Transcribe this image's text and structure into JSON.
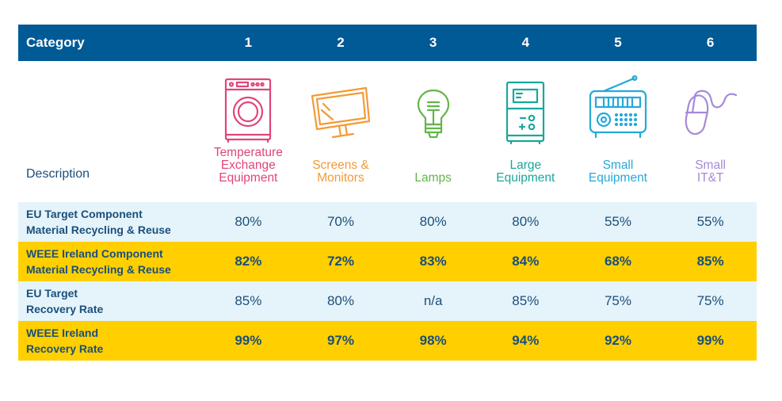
{
  "header": {
    "category_label": "Category",
    "numbers": [
      "1",
      "2",
      "3",
      "4",
      "5",
      "6"
    ]
  },
  "description_label": "Description",
  "categories": [
    {
      "lines": [
        "Temperature",
        "Exchange",
        "Equipment"
      ],
      "color": "#e0457b",
      "icon": "washing-machine-icon"
    },
    {
      "lines": [
        "Screens &",
        "Monitors"
      ],
      "color": "#f39a36",
      "icon": "monitor-icon"
    },
    {
      "lines": [
        "Lamps"
      ],
      "color": "#63b54a",
      "icon": "lightbulb-icon"
    },
    {
      "lines": [
        "Large",
        "Equipment"
      ],
      "color": "#1aa79c",
      "icon": "large-equipment-icon"
    },
    {
      "lines": [
        "Small",
        "Equipment"
      ],
      "color": "#25a9d9",
      "icon": "radio-icon"
    },
    {
      "lines": [
        "Small",
        "IT&T"
      ],
      "color": "#a58ad6",
      "icon": "computer-mouse-icon"
    }
  ],
  "rows": [
    {
      "label": [
        "EU Target Component",
        "Material Recycling & Reuse"
      ],
      "values": [
        "80%",
        "70%",
        "80%",
        "80%",
        "55%",
        "55%"
      ],
      "style": "light"
    },
    {
      "label": [
        "WEEE Ireland Component",
        "Material Recycling & Reuse"
      ],
      "values": [
        "82%",
        "72%",
        "83%",
        "84%",
        "68%",
        "85%"
      ],
      "style": "gold"
    },
    {
      "label": [
        "EU Target",
        "Recovery Rate"
      ],
      "values": [
        "85%",
        "80%",
        "n/a",
        "85%",
        "75%",
        "75%"
      ],
      "style": "light"
    },
    {
      "label": [
        "WEEE Ireland",
        "Recovery Rate"
      ],
      "values": [
        "99%",
        "97%",
        "98%",
        "94%",
        "92%",
        "99%"
      ],
      "style": "gold"
    }
  ],
  "colors": {
    "header_bg": "#005a96",
    "light_row": "#e5f4fb",
    "gold_row": "#ffcf00",
    "text_dark": "#1b4f7a"
  }
}
